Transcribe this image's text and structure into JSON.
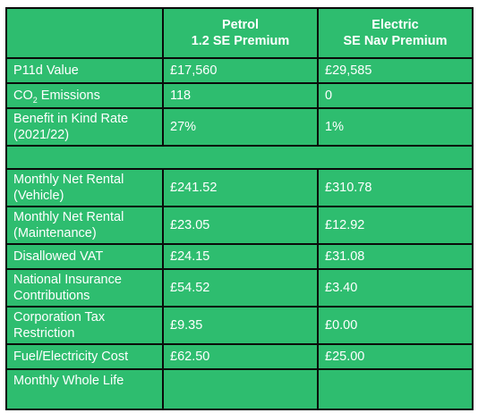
{
  "header": {
    "col1_line1": "Petrol",
    "col1_line2": "1.2 SE Premium",
    "col2_line1": "Electric",
    "col2_line2": "SE Nav Premium"
  },
  "rows": {
    "p11d": {
      "label": "P11d Value",
      "petrol": "£17,560",
      "electric": "£29,585"
    },
    "co2": {
      "label_prefix": "CO",
      "label_sub": "2",
      "label_suffix": " Emissions",
      "petrol": "118",
      "electric": "0"
    },
    "bik": {
      "label": "Benefit in Kind Rate (2021/22)",
      "petrol": "27%",
      "electric": "1%"
    },
    "monthly_net_rental_vehicle": {
      "label": "Monthly Net Rental (Vehicle)",
      "petrol": "£241.52",
      "electric": "£310.78"
    },
    "monthly_net_rental_maintenance": {
      "label": "Monthly Net Rental (Maintenance)",
      "petrol": "£23.05",
      "electric": "£12.92"
    },
    "disallowed_vat": {
      "label": "Disallowed VAT",
      "petrol": "£24.15",
      "electric": "£31.08"
    },
    "national_insurance": {
      "label": "National Insurance Contributions",
      "petrol": "£54.52",
      "electric": "£3.40"
    },
    "corporation_tax": {
      "label": "Corporation Tax Restriction",
      "petrol": "£9.35",
      "electric": "£0.00"
    },
    "fuel_cost": {
      "label": "Fuel/Electricity Cost",
      "petrol": "£62.50",
      "electric": "£25.00"
    },
    "whole_life_partial": {
      "label": "Monthly Whole Life"
    }
  }
}
